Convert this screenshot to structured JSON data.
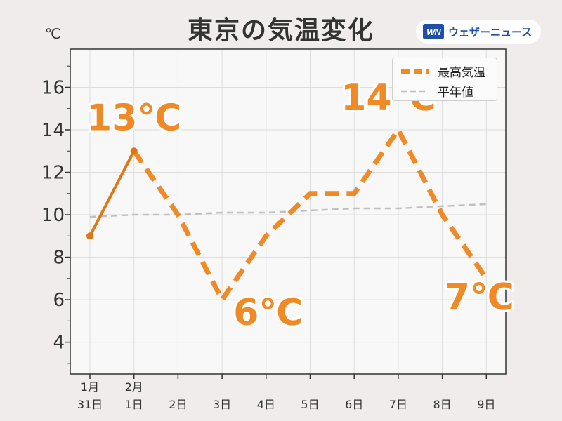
{
  "title": "東京の気温変化",
  "brand": {
    "logo": "WN",
    "name": "ウェザーニュース"
  },
  "unit_label": "℃",
  "colors": {
    "high": "#ef8a26",
    "observed": "#e07614",
    "normal": "#c0c0c0",
    "plot_bg": "#f9f8f8",
    "grid": "#dddddd"
  },
  "chart_data": {
    "type": "line",
    "title": "東京の気温変化",
    "ylabel": "℃",
    "ylim": [
      2.5,
      17.8
    ],
    "yticks": [
      4,
      6,
      8,
      10,
      12,
      14,
      16
    ],
    "grid": true,
    "legend_position": "top-right",
    "categories": [
      [
        "1月",
        "31日"
      ],
      [
        "2月",
        "1日"
      ],
      [
        "",
        "2日"
      ],
      [
        "",
        "3日"
      ],
      [
        "",
        "4日"
      ],
      [
        "",
        "5日"
      ],
      [
        "",
        "6日"
      ],
      [
        "",
        "7日"
      ],
      [
        "",
        "8日"
      ],
      [
        "",
        "9日"
      ]
    ],
    "series": [
      {
        "name": "最高気温",
        "style": "dashed",
        "color": "#ef8a26",
        "observed_until_index": 1,
        "values": [
          9,
          13,
          10,
          6,
          9,
          11,
          11,
          14,
          10,
          7
        ]
      },
      {
        "name": "平年値",
        "style": "dashed-thin",
        "color": "#c0c0c0",
        "values": [
          9.9,
          10.0,
          10.0,
          10.1,
          10.1,
          10.2,
          10.3,
          10.3,
          10.4,
          10.5
        ]
      }
    ],
    "annotations": [
      {
        "index": 1,
        "text": "13℃"
      },
      {
        "index": 3,
        "text": "6℃"
      },
      {
        "index": 7,
        "text": "14℃"
      },
      {
        "index": 9,
        "text": "7℃"
      }
    ]
  }
}
